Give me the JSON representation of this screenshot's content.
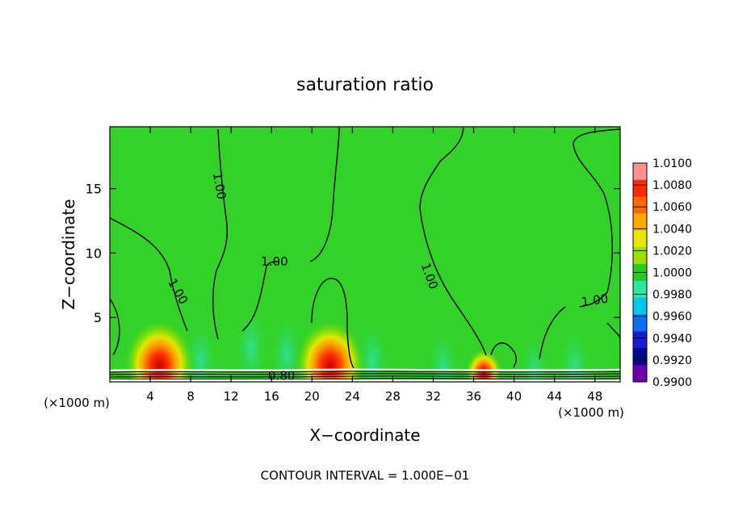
{
  "chart_data": {
    "type": "heatmap",
    "title": "saturation ratio",
    "xlabel": "X−coordinate",
    "ylabel": "Z−coordinate",
    "x_unit_left": "(×1000 m)",
    "x_unit_right": "(×1000 m)",
    "xlim": [
      0,
      50.5
    ],
    "ylim": [
      0,
      19.8
    ],
    "x_ticks": [
      4,
      8,
      12,
      16,
      20,
      24,
      28,
      32,
      36,
      40,
      44,
      48
    ],
    "y_ticks": [
      5,
      10,
      15
    ],
    "contour_labels": [
      {
        "text": "1.00",
        "x": 10.8,
        "z": 15.2,
        "angle": 80
      },
      {
        "text": "1.00",
        "x": 6.7,
        "z": 7.0,
        "angle": 60
      },
      {
        "text": "1.00",
        "x": 16.3,
        "z": 9.3,
        "angle": 0
      },
      {
        "text": "1.00",
        "x": 31.6,
        "z": 8.2,
        "angle": 70
      },
      {
        "text": "1.00",
        "x": 48.0,
        "z": 6.3,
        "angle": -8
      },
      {
        "text": "0.80",
        "x": 17.0,
        "z": 0.45,
        "angle": 0
      }
    ],
    "colorbar": {
      "labels": [
        "1.0100",
        "1.0080",
        "1.0060",
        "1.0040",
        "1.0020",
        "1.0000",
        "0.9980",
        "0.9960",
        "0.9940",
        "0.9920",
        "0.9900"
      ],
      "colors": [
        "#ff9090",
        "#ff2a00",
        "#ff6a00",
        "#ffa800",
        "#e6e600",
        "#9ce000",
        "#22cc22",
        "#2ee6a0",
        "#00c6f0",
        "#0a70f0",
        "#1b1bd0",
        "#000c8c",
        "#6a00b0"
      ]
    },
    "colors": {
      "background_field": "#32d228",
      "hotspot_core": "#d20000",
      "hotspot_mid": "#ff7a00",
      "hotspot_edge": "#e8e600",
      "subsaturated": "#2ee4a8"
    },
    "hotspots": [
      {
        "x": 4.9,
        "z": 1.6,
        "strength": 1.0
      },
      {
        "x": 21.8,
        "z": 1.6,
        "strength": 1.0
      },
      {
        "x": 37.0,
        "z": 0.9,
        "strength": 0.45
      }
    ],
    "footer": "CONTOUR INTERVAL =  1.000E−01"
  }
}
